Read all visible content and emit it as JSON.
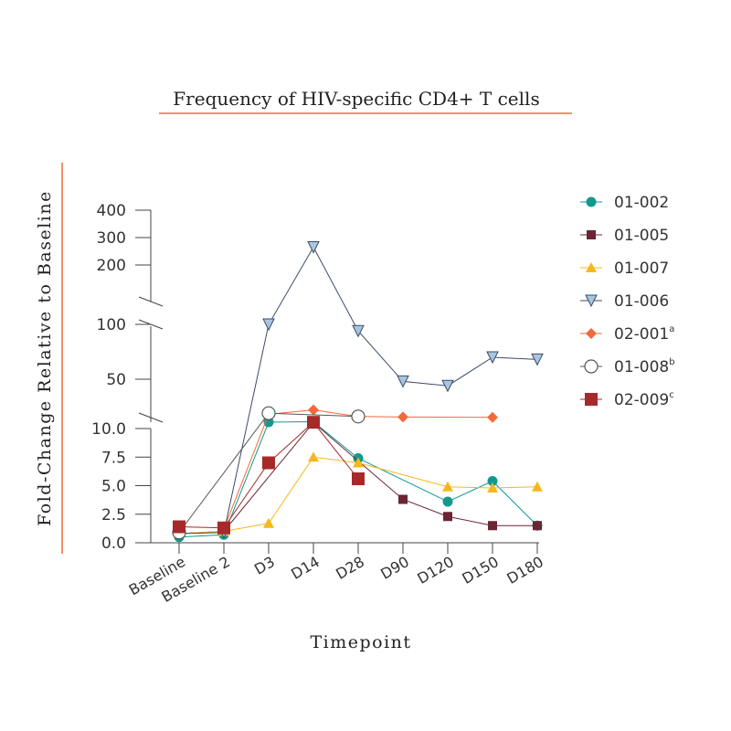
{
  "chart_data": {
    "type": "line",
    "title": "Frequency of HIV-specific CD4+ T cells",
    "xlabel": "Timepoint",
    "ylabel": "Fold-Change Relative to Baseline",
    "categories": [
      "Baseline",
      "Baseline 2",
      "D3",
      "D14",
      "D28",
      "D90",
      "D120",
      "D150",
      "D180"
    ],
    "y_axis_segments": [
      {
        "range": [
          0,
          10
        ],
        "ticks": [
          "0.0",
          "2.5",
          "5.0",
          "7.5",
          "10.0"
        ]
      },
      {
        "range": [
          10,
          100
        ],
        "ticks": [
          "50"
        ]
      },
      {
        "range": [
          100,
          400
        ],
        "ticks": [
          "100",
          "200",
          "300",
          "400"
        ]
      }
    ],
    "legend_position": "right",
    "series": [
      {
        "name": "01-002",
        "superscript": "",
        "color": "#12998f",
        "marker": "circle",
        "filled": true,
        "points": [
          {
            "x": "Baseline",
            "y": 0.5
          },
          {
            "x": "Baseline 2",
            "y": 0.7
          },
          {
            "x": "D3",
            "y": 10.8
          },
          {
            "x": "D14",
            "y": 11.2
          },
          {
            "x": "D28",
            "y": 7.4
          },
          {
            "x": "D120",
            "y": 3.6
          },
          {
            "x": "D150",
            "y": 5.4
          },
          {
            "x": "D180",
            "y": 1.5
          }
        ]
      },
      {
        "name": "01-005",
        "superscript": "",
        "color": "#6b2433",
        "marker": "square-small",
        "filled": true,
        "points": [
          {
            "x": "Baseline",
            "y": 0.8
          },
          {
            "x": "Baseline 2",
            "y": 1.0
          },
          {
            "x": "D14",
            "y": 10.5
          },
          {
            "x": "D90",
            "y": 3.8
          },
          {
            "x": "D120",
            "y": 2.3
          },
          {
            "x": "D150",
            "y": 1.5
          },
          {
            "x": "D180",
            "y": 1.5
          }
        ]
      },
      {
        "name": "01-007",
        "superscript": "",
        "color": "#f5b81c",
        "marker": "triangle-up",
        "filled": true,
        "points": [
          {
            "x": "Baseline",
            "y": 0.8
          },
          {
            "x": "Baseline 2",
            "y": 1.0
          },
          {
            "x": "D3",
            "y": 1.7
          },
          {
            "x": "D14",
            "y": 7.5
          },
          {
            "x": "D28",
            "y": 7.0
          },
          {
            "x": "D120",
            "y": 4.9
          },
          {
            "x": "D150",
            "y": 4.8
          },
          {
            "x": "D180",
            "y": 4.9
          }
        ]
      },
      {
        "name": "01-006",
        "superscript": "",
        "color": "#a9c6e0",
        "stroke": "#3d4a66",
        "marker": "triangle-down",
        "filled": true,
        "points": [
          {
            "x": "Baseline",
            "y": 0.8
          },
          {
            "x": "Baseline 2",
            "y": 0.9
          },
          {
            "x": "D3",
            "y": 100
          },
          {
            "x": "D14",
            "y": 265
          },
          {
            "x": "D28",
            "y": 94
          },
          {
            "x": "D90",
            "y": 48
          },
          {
            "x": "D120",
            "y": 44
          },
          {
            "x": "D150",
            "y": 70
          },
          {
            "x": "D180",
            "y": 68
          }
        ]
      },
      {
        "name": "02-001",
        "superscript": "a",
        "color": "#f26a3c",
        "marker": "diamond",
        "filled": true,
        "points": [
          {
            "x": "Baseline 2",
            "y": 1.2
          },
          {
            "x": "D3",
            "y": 18
          },
          {
            "x": "D14",
            "y": 22
          },
          {
            "x": "D28",
            "y": 16
          },
          {
            "x": "D90",
            "y": 15.5
          },
          {
            "x": "D150",
            "y": 15.2
          }
        ]
      },
      {
        "name": "01-008",
        "superscript": "b",
        "color": "#ffffff",
        "stroke": "#555555",
        "marker": "circle-open",
        "filled": false,
        "points": [
          {
            "x": "Baseline",
            "y": 0.9
          },
          {
            "x": "D3",
            "y": 19
          },
          {
            "x": "D28",
            "y": 16
          }
        ]
      },
      {
        "name": "02-009",
        "superscript": "c",
        "color": "#a62a2a",
        "marker": "square-large",
        "filled": true,
        "points": [
          {
            "x": "Baseline",
            "y": 1.4
          },
          {
            "x": "Baseline 2",
            "y": 1.3
          },
          {
            "x": "D3",
            "y": 7.0
          },
          {
            "x": "D14",
            "y": 10.7
          },
          {
            "x": "D28",
            "y": 5.6
          }
        ]
      }
    ]
  }
}
